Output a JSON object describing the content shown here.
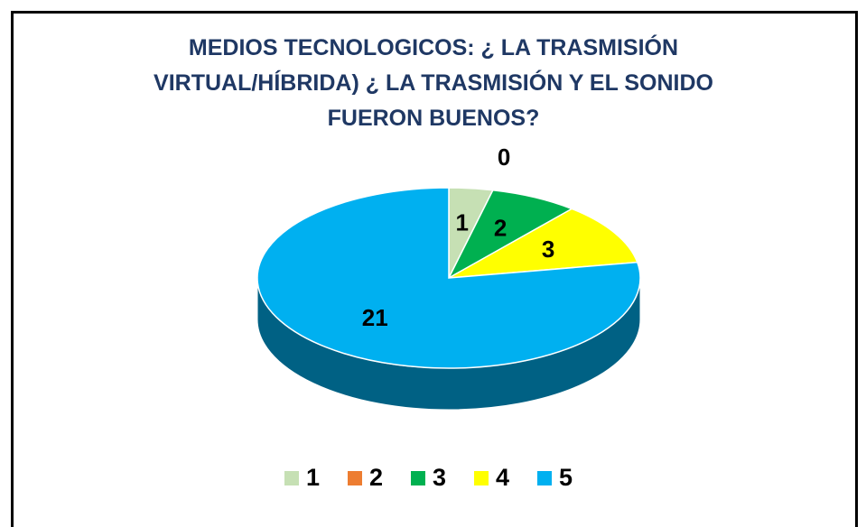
{
  "chart_data": {
    "type": "pie3d",
    "title": "MEDIOS TECNOLOGICOS: ¿ LA TRASMISIÓN VIRTUAL/HÍBRIDA) ¿ LA TRASMISIÓN Y EL SONIDO FUERON BUENOS?",
    "categories": [
      "1",
      "2",
      "3",
      "4",
      "5"
    ],
    "values": [
      1,
      0,
      2,
      3,
      21
    ],
    "colors": [
      "#c6e0b4",
      "#ed7d31",
      "#00b050",
      "#ffff00",
      "#00b0f0"
    ],
    "legend": "bottom"
  }
}
